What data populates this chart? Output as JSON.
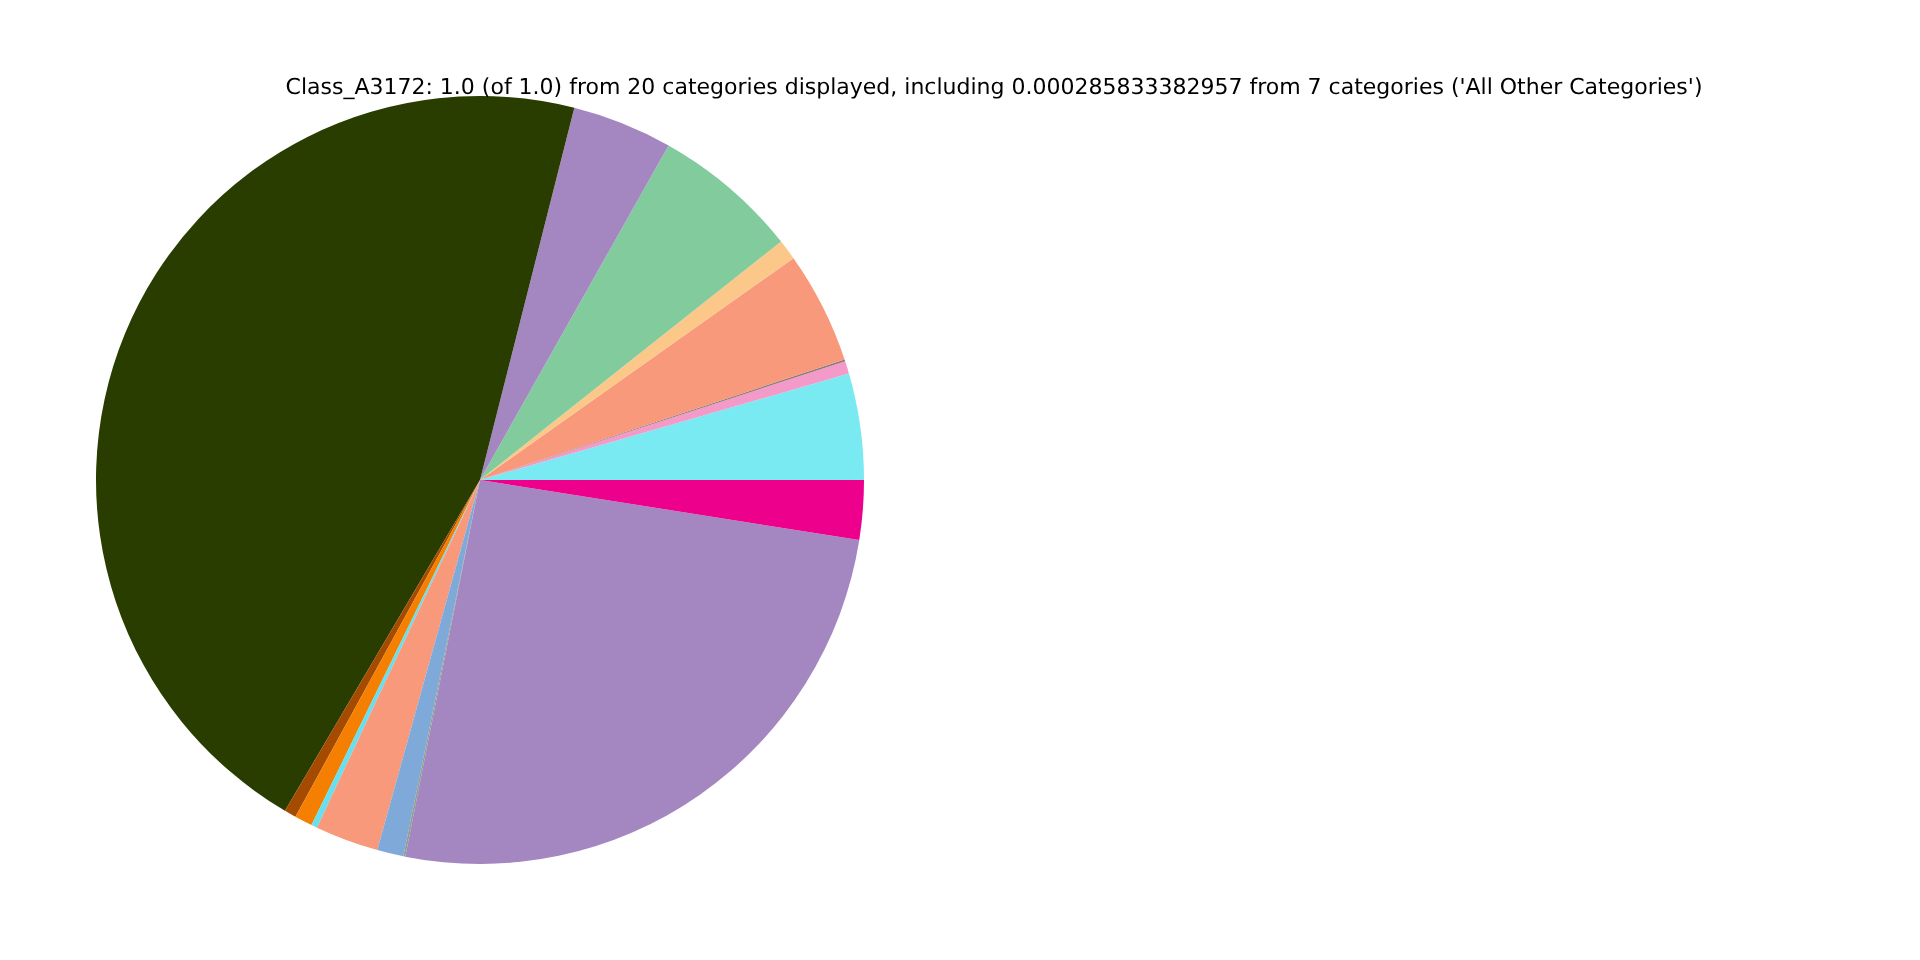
{
  "chart_data": {
    "type": "pie",
    "title": "Class_A3172: 1.0 (of 1.0) from 20 categories displayed, including 0.000285833382957 from 7 categories ('All Other Categories')",
    "categories": [
      null,
      null,
      null,
      null,
      null,
      null,
      null,
      null,
      null,
      null,
      null,
      null,
      null,
      null,
      null,
      null
    ],
    "values": [
      4.47,
      0.53,
      0.08,
      4.72,
      0.86,
      6.17,
      4.22,
      45.47,
      0.5,
      0.75,
      0.25,
      2.67,
      1.11,
      0.08,
      25.62,
      2.5
    ],
    "colors": [
      "#7aeaf2",
      "#f49ac9",
      "#8a7a7a",
      "#f7997a",
      "#fbc88a",
      "#82cb9d",
      "#a487c0",
      "#2a3d00",
      "#a44b00",
      "#f47f00",
      "#66e0ee",
      "#f7997a",
      "#7fa9d9",
      "#8aa090",
      "#a487c0",
      "#ec008c"
    ]
  }
}
